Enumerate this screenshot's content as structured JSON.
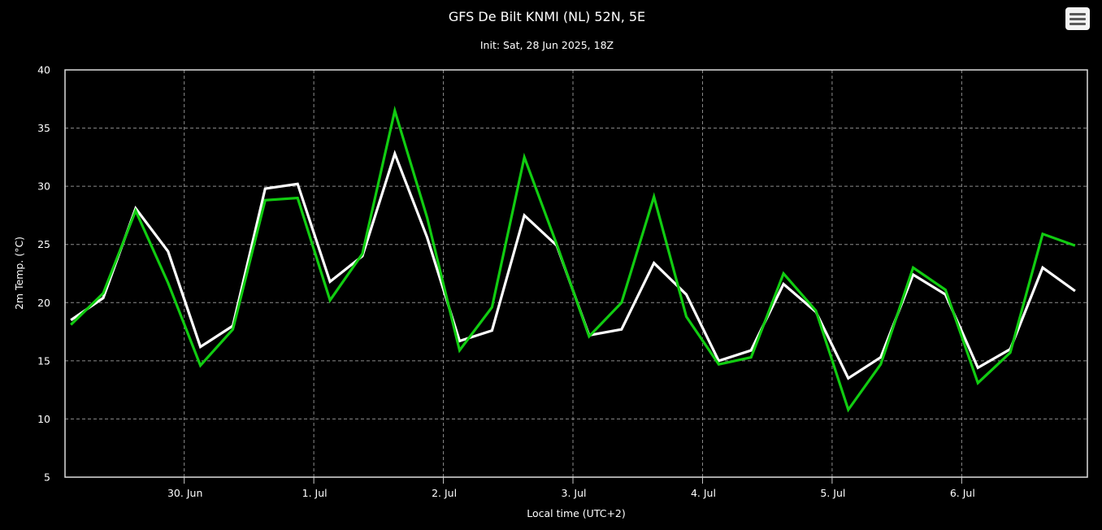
{
  "chart_data": {
    "type": "line",
    "title": "GFS De Bilt KNMI (NL) 52N, 5E",
    "subtitle": "Init: Sat, 28 Jun 2025, 18Z",
    "xlabel": "Local time (UTC+2)",
    "ylabel": "2m Temp. (°C)",
    "ylim": [
      5,
      40
    ],
    "yticks": [
      "5",
      "10",
      "15",
      "20",
      "25",
      "30",
      "35",
      "40"
    ],
    "xlim_days": [
      29.08,
      36.97
    ],
    "xticks": [
      {
        "label": "30. Jun",
        "day": 30
      },
      {
        "label": "1. Jul",
        "day": 31
      },
      {
        "label": "2. Jul",
        "day": 32
      },
      {
        "label": "3. Jul",
        "day": 33
      },
      {
        "label": "4. Jul",
        "day": 34
      },
      {
        "label": "5. Jul",
        "day": 35
      },
      {
        "label": "6. Jul",
        "day": 36
      }
    ],
    "grid": true,
    "x_days": [
      29.125,
      29.375,
      29.625,
      29.875,
      30.125,
      30.375,
      30.625,
      30.875,
      31.125,
      31.375,
      31.625,
      31.875,
      32.125,
      32.375,
      32.625,
      32.875,
      33.125,
      33.375,
      33.625,
      33.875,
      34.125,
      34.375,
      34.625,
      34.875,
      35.125,
      35.375,
      35.625,
      35.875,
      36.125,
      36.375,
      36.625,
      36.875
    ],
    "series": [
      {
        "color": "#ffffff",
        "values": [
          18.5,
          20.4,
          28.1,
          24.4,
          16.2,
          18.0,
          29.8,
          30.2,
          21.8,
          24.0,
          32.8,
          25.6,
          16.7,
          17.6,
          27.5,
          24.9,
          17.2,
          17.7,
          23.4,
          20.7,
          15.0,
          15.9,
          21.6,
          19.2,
          13.5,
          15.3,
          22.4,
          20.7,
          14.4,
          16.0,
          23.0,
          21.0
        ]
      },
      {
        "color": "#11cc11",
        "values": [
          18.1,
          20.8,
          27.9,
          21.7,
          14.6,
          17.7,
          28.8,
          29.0,
          20.2,
          24.2,
          36.5,
          27.3,
          15.9,
          19.6,
          32.5,
          25.0,
          17.1,
          20.0,
          29.1,
          18.8,
          14.7,
          15.3,
          22.5,
          19.3,
          10.8,
          14.7,
          23.0,
          21.1,
          13.1,
          15.7,
          25.9,
          24.9
        ]
      }
    ]
  }
}
